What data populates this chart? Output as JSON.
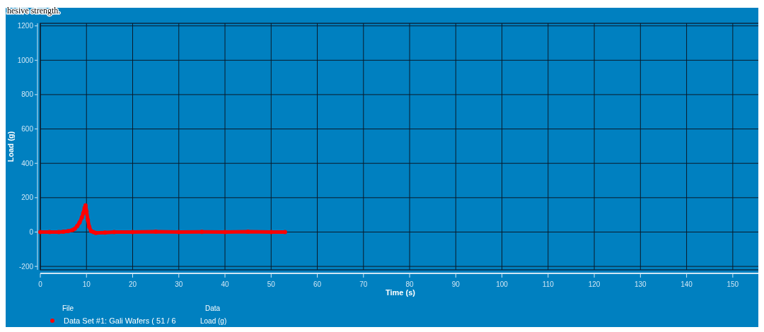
{
  "chart_data": {
    "type": "line",
    "xlabel": "Time (s)",
    "ylabel": "Load (g)",
    "xlim": [
      0,
      156
    ],
    "xticks": [
      0,
      10,
      20,
      30,
      40,
      50,
      60,
      70,
      80,
      90,
      100,
      110,
      120,
      130,
      140,
      150
    ],
    "ylim": [
      -220,
      1215
    ],
    "yticks": [
      -200,
      0,
      200,
      400,
      600,
      800,
      1000,
      1200
    ],
    "grid": true,
    "marker": "circle",
    "legend": "bottom",
    "legend_title": "File",
    "annotations": [
      "hesive strength.",
      "Data",
      "Load (g)"
    ],
    "series": [
      {
        "name": "Data Set #1: Gali Wafers ( 51 / 6",
        "color": "#ff0000",
        "x": [
          0,
          2,
          4,
          5,
          6,
          7,
          7.5,
          8,
          8.5,
          9,
          9.3,
          9.6,
          9.8,
          10,
          10.3,
          10.6,
          11,
          11.5,
          12,
          14,
          16,
          20,
          25,
          30,
          35,
          40,
          45,
          50,
          53
        ],
        "values": [
          0,
          0,
          0,
          2,
          5,
          12,
          20,
          35,
          55,
          85,
          110,
          140,
          155,
          120,
          70,
          30,
          5,
          0,
          -5,
          -3,
          0,
          0,
          2,
          0,
          1,
          0,
          2,
          0,
          0
        ]
      }
    ]
  }
}
